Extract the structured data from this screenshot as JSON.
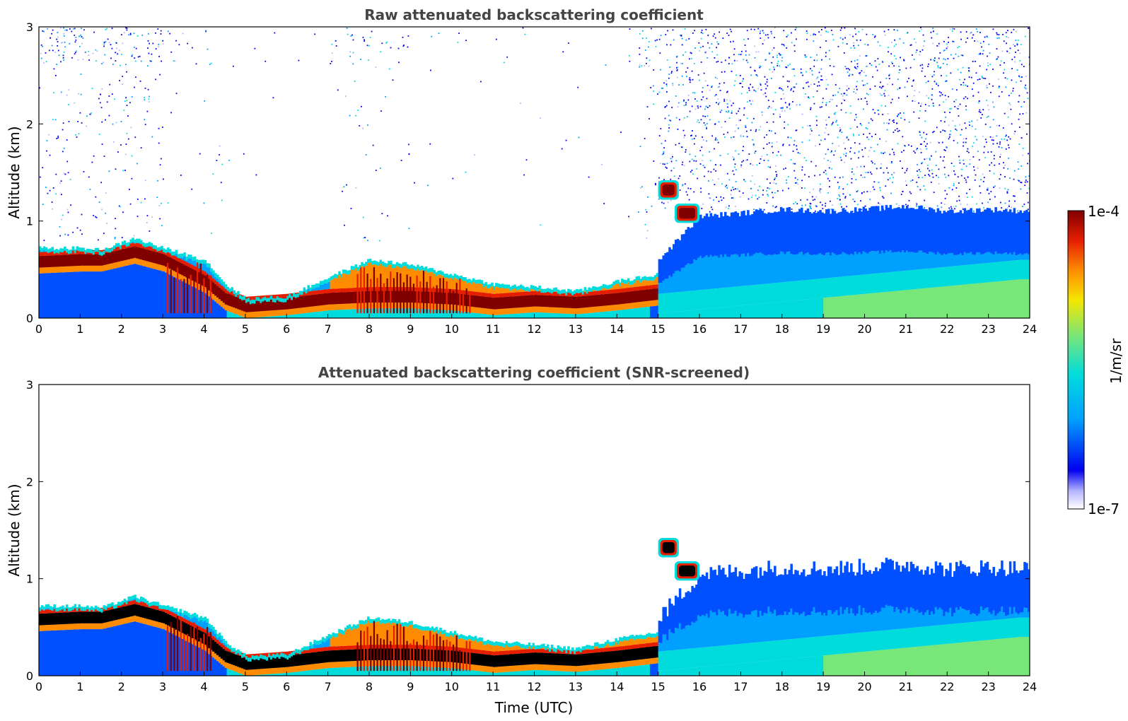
{
  "chart_data": [
    {
      "type": "heatmap",
      "title": "Raw attenuated backscattering coefficient",
      "xlabel": "",
      "ylabel": "Altitude (km)",
      "xlim": [
        0,
        24
      ],
      "ylim": [
        0,
        3
      ],
      "xticks": [
        "0",
        "1",
        "2",
        "3",
        "4",
        "5",
        "6",
        "7",
        "8",
        "9",
        "10",
        "11",
        "12",
        "13",
        "14",
        "15",
        "16",
        "17",
        "18",
        "19",
        "20",
        "21",
        "22",
        "23",
        "24"
      ],
      "yticks": [
        "0",
        "1",
        "2",
        "3"
      ],
      "screened": false,
      "boundary_layer_top_km": [
        [
          0,
          0.72
        ],
        [
          1,
          0.72
        ],
        [
          1.5,
          0.7
        ],
        [
          2.3,
          0.82
        ],
        [
          3,
          0.72
        ],
        [
          4,
          0.6
        ],
        [
          4.5,
          0.35
        ],
        [
          5,
          0.2
        ],
        [
          6,
          0.22
        ],
        [
          7,
          0.42
        ],
        [
          8,
          0.6
        ],
        [
          9,
          0.55
        ],
        [
          10,
          0.45
        ],
        [
          11,
          0.35
        ],
        [
          12,
          0.32
        ],
        [
          13,
          0.28
        ],
        [
          14,
          0.38
        ],
        [
          15,
          0.45
        ]
      ],
      "aerosol_layer_center_km": [
        [
          0,
          0.58
        ],
        [
          1,
          0.6
        ],
        [
          1.5,
          0.6
        ],
        [
          2.3,
          0.68
        ],
        [
          3,
          0.6
        ],
        [
          4,
          0.38
        ],
        [
          4.5,
          0.2
        ],
        [
          5,
          0.12
        ],
        [
          6,
          0.15
        ],
        [
          7,
          0.2
        ],
        [
          8,
          0.22
        ],
        [
          9,
          0.22
        ],
        [
          10,
          0.2
        ],
        [
          11,
          0.15
        ],
        [
          12,
          0.18
        ],
        [
          13,
          0.16
        ],
        [
          14,
          0.2
        ],
        [
          15,
          0.25
        ]
      ],
      "cloud_features": [
        {
          "time_start": 15.0,
          "time_end": 15.5,
          "alt_bottom_km": 1.22,
          "alt_top_km": 1.42
        },
        {
          "time_start": 15.4,
          "time_end": 16.0,
          "alt_bottom_km": 0.98,
          "alt_top_km": 1.18
        }
      ],
      "residual_layer_top_km": [
        [
          15,
          0.6
        ],
        [
          16,
          1.05
        ],
        [
          17,
          1.08
        ],
        [
          18,
          1.12
        ],
        [
          19,
          1.1
        ],
        [
          20,
          1.12
        ],
        [
          21,
          1.15
        ],
        [
          22,
          1.1
        ],
        [
          23,
          1.12
        ],
        [
          24,
          1.1
        ]
      ],
      "colorbar": {
        "min": "1e-7",
        "max": "1e-4",
        "label": "1/m/sr"
      }
    },
    {
      "type": "heatmap",
      "title": "Attenuated backscattering coefficient (SNR-screened)",
      "xlabel": "Time (UTC)",
      "ylabel": "Altitude (km)",
      "xlim": [
        0,
        24
      ],
      "ylim": [
        0,
        3
      ],
      "xticks": [
        "0",
        "1",
        "2",
        "3",
        "4",
        "5",
        "6",
        "7",
        "8",
        "9",
        "10",
        "11",
        "12",
        "13",
        "14",
        "15",
        "16",
        "17",
        "18",
        "19",
        "20",
        "21",
        "22",
        "23",
        "24"
      ],
      "yticks": [
        "0",
        "1",
        "2",
        "3"
      ],
      "screened": true,
      "boundary_layer_top_km": [
        [
          0,
          0.72
        ],
        [
          1,
          0.72
        ],
        [
          1.5,
          0.7
        ],
        [
          2.3,
          0.82
        ],
        [
          3,
          0.72
        ],
        [
          4,
          0.6
        ],
        [
          4.5,
          0.35
        ],
        [
          5,
          0.2
        ],
        [
          6,
          0.22
        ],
        [
          7,
          0.42
        ],
        [
          8,
          0.6
        ],
        [
          9,
          0.55
        ],
        [
          10,
          0.45
        ],
        [
          11,
          0.35
        ],
        [
          12,
          0.32
        ],
        [
          13,
          0.28
        ],
        [
          14,
          0.38
        ],
        [
          15,
          0.45
        ]
      ],
      "aerosol_layer_center_km": [
        [
          0,
          0.58
        ],
        [
          1,
          0.6
        ],
        [
          1.5,
          0.6
        ],
        [
          2.3,
          0.68
        ],
        [
          3,
          0.6
        ],
        [
          4,
          0.38
        ],
        [
          4.5,
          0.2
        ],
        [
          5,
          0.12
        ],
        [
          6,
          0.15
        ],
        [
          7,
          0.2
        ],
        [
          8,
          0.22
        ],
        [
          9,
          0.22
        ],
        [
          10,
          0.2
        ],
        [
          11,
          0.15
        ],
        [
          12,
          0.18
        ],
        [
          13,
          0.16
        ],
        [
          14,
          0.2
        ],
        [
          15,
          0.25
        ]
      ],
      "cloud_features": [
        {
          "time_start": 15.0,
          "time_end": 15.5,
          "alt_bottom_km": 1.22,
          "alt_top_km": 1.42
        },
        {
          "time_start": 15.4,
          "time_end": 16.0,
          "alt_bottom_km": 0.98,
          "alt_top_km": 1.18
        }
      ],
      "residual_layer_top_km": [
        [
          15,
          0.6
        ],
        [
          16,
          1.05
        ],
        [
          17,
          1.08
        ],
        [
          18,
          1.12
        ],
        [
          19,
          1.1
        ],
        [
          20,
          1.12
        ],
        [
          21,
          1.15
        ],
        [
          22,
          1.1
        ],
        [
          23,
          1.12
        ],
        [
          24,
          1.1
        ]
      ],
      "colorbar": {
        "min": "1e-7",
        "max": "1e-4",
        "label": "1/m/sr"
      }
    }
  ],
  "colorbar": {
    "max_label": "1e-4",
    "min_label": "1e-7",
    "unit_label": "1/m/sr"
  },
  "colors": {
    "dark_red": "#800000",
    "red": "#e61e00",
    "orange": "#ff8c00",
    "yellow": "#f5e600",
    "green": "#78e678",
    "cyan": "#00dcdc",
    "light_blue": "#00a0ff",
    "blue": "#0050ff",
    "deep_blue": "#0000f0",
    "noise_light": "#b4b4ff",
    "black": "#000000",
    "title_grey": "#444444"
  }
}
